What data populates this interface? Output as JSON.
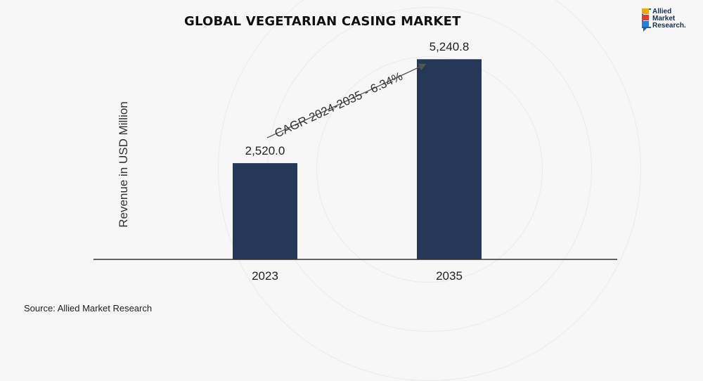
{
  "title": "GLOBAL VEGETARIAN CASING MARKET",
  "logo": {
    "line1": "Allied",
    "line2": "Market",
    "line3": "Research."
  },
  "source": "Source: Allied Market Research",
  "colors": {
    "bar": "#253858",
    "axis": "#333333",
    "background": "#f7f7f8"
  },
  "chart_data": {
    "type": "bar",
    "categories": [
      "2023",
      "2035"
    ],
    "values": [
      2520.0,
      5240.8
    ],
    "value_labels": [
      "2,520.0",
      "5,240.8"
    ],
    "ylabel": "Revenue in USD Million",
    "ylim": [
      0,
      6000
    ],
    "grid": false,
    "annotation": "CAGR 2024-2035 - 6.34%"
  }
}
